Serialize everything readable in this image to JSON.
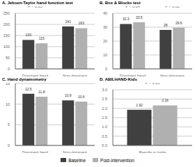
{
  "chart_data": [
    {
      "type": "bar",
      "title": "A. Jebsen-Taylor hand function test",
      "categories": [
        "Dominant hand",
        "Non-dominant hand"
      ],
      "series": [
        {
          "name": "Baseline",
          "color": "#404040",
          "values": [
            130,
            191
          ]
        },
        {
          "name": "Post-intervention",
          "color": "#b0b0b0",
          "values": [
            115,
            183
          ]
        }
      ],
      "ylim": [
        0,
        250
      ],
      "yticks": [
        0,
        50,
        100,
        150,
        200,
        250
      ],
      "grid": true,
      "data_labels": true,
      "annotations": [
        {
          "text": "P < 0.05",
          "category": "Dominant hand"
        }
      ]
    },
    {
      "type": "bar",
      "title": "B. Box & Blocks test",
      "categories": [
        "Dominant hand",
        "Non-dominant hand"
      ],
      "series": [
        {
          "name": "Baseline",
          "color": "#404040",
          "values": [
            32.3,
            28
          ]
        },
        {
          "name": "Post-intervention",
          "color": "#b0b0b0",
          "values": [
            33.5,
            29.6
          ]
        }
      ],
      "ylim": [
        0,
        40
      ],
      "yticks": [
        0,
        10,
        20,
        30,
        40
      ],
      "grid": true,
      "data_labels": true,
      "annotations": [
        {
          "text": "P < 0.04",
          "category": "Dominant hand"
        },
        {
          "text": "P < 0.01",
          "category": "Non-dominant hand"
        }
      ]
    },
    {
      "type": "bar",
      "title": "C. Hand dynamometry",
      "categories": [
        "Dominant hand",
        "Non-dominant hand"
      ],
      "series": [
        {
          "name": "Baseline",
          "color": "#404040",
          "values": [
            12.5,
            10.9
          ]
        },
        {
          "name": "Post-intervention",
          "color": "#b0b0b0",
          "values": [
            11.8,
            10.6
          ]
        }
      ],
      "ylim": [
        0,
        15
      ],
      "yticks": [
        0,
        5,
        10,
        15
      ],
      "grid": true,
      "data_labels": true
    },
    {
      "type": "bar",
      "title": "D. ABILHAND-Kids",
      "categories": [
        "Results in logits"
      ],
      "series": [
        {
          "name": "Baseline",
          "color": "#404040",
          "values": [
            1.92
          ]
        },
        {
          "name": "Post-intervention",
          "color": "#b0b0b0",
          "values": [
            2.16
          ]
        }
      ],
      "ylim": [
        0,
        3
      ],
      "yticks": [
        {
          "value": 0,
          "label": "0.0"
        },
        0.5,
        {
          "value": 1.0,
          "label": "1.0"
        },
        1.5,
        {
          "value": 2.0,
          "label": "2.0"
        },
        2.5,
        {
          "value": 3.0,
          "label": "3.0"
        }
      ],
      "grid": true,
      "data_labels": true,
      "legend": "bottom",
      "annotations": [
        {
          "text": "P < 0.05",
          "category": "Results in logits"
        }
      ]
    }
  ]
}
